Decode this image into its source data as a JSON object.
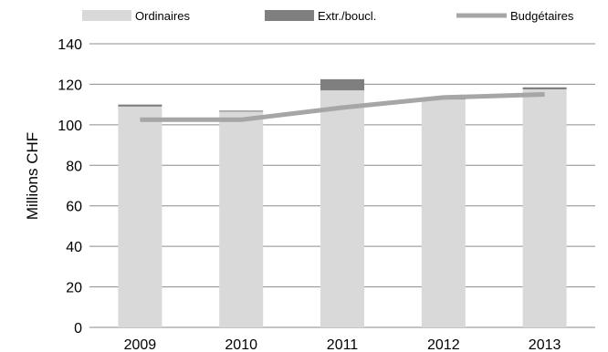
{
  "chart_data": {
    "type": "bar",
    "stacked": true,
    "categories": [
      "2009",
      "2010",
      "2011",
      "2012",
      "2013"
    ],
    "series": [
      {
        "name": "Ordinaires",
        "type": "bar",
        "color": "#d9d9d9",
        "values": [
          109,
          106.5,
          117,
          112.5,
          117.5
        ]
      },
      {
        "name": "Extr./boucl.",
        "type": "bar",
        "color": "#7f7f7f",
        "values": [
          1,
          0.5,
          5.5,
          0.5,
          1
        ]
      },
      {
        "name": "Budgétaires",
        "type": "line",
        "color": "#a6a6a6",
        "values": [
          102.5,
          102.5,
          108.5,
          113.5,
          115
        ]
      }
    ],
    "ylabel": "Millions CHF",
    "ylim": [
      0,
      140
    ],
    "yticks": [
      0,
      20,
      40,
      60,
      80,
      100,
      120,
      140
    ],
    "grid": true,
    "legend_position": "top"
  }
}
